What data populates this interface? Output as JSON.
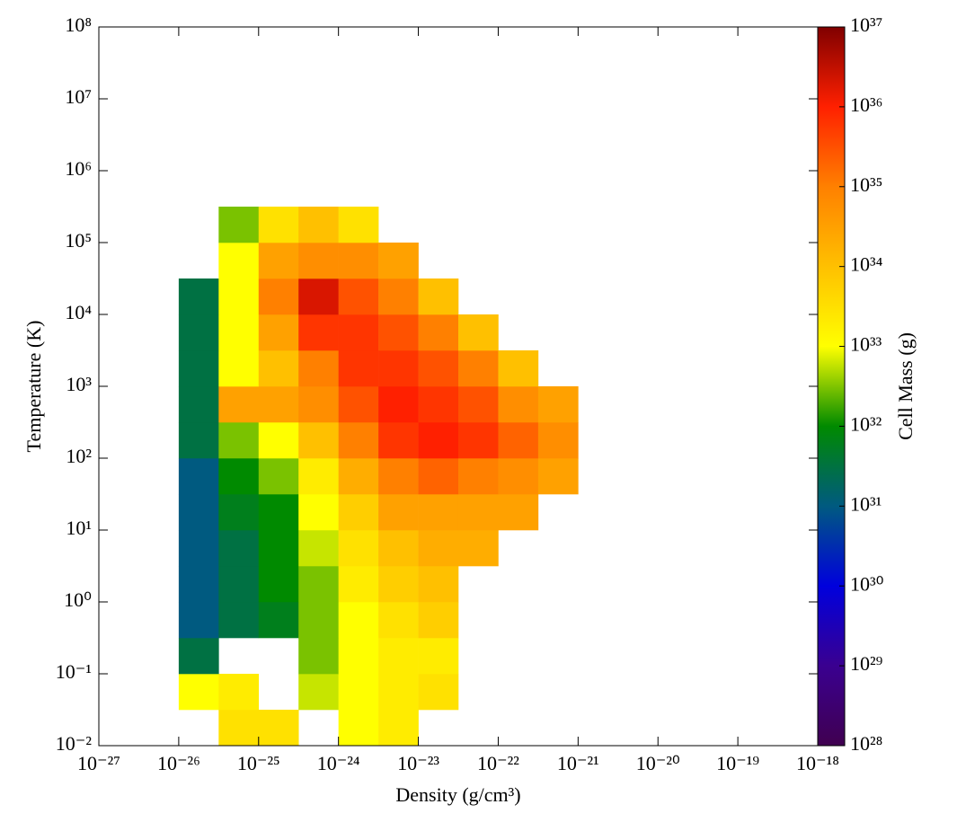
{
  "chart_data": {
    "type": "histogram2d",
    "x_label": "Density  (g/cm³)",
    "y_label": "Temperature  (K)",
    "colorbar_label": "Cell Mass  (g)",
    "xscale": "log",
    "yscale": "log",
    "colorscale": "log",
    "xlim": [
      1e-27,
      1e-18
    ],
    "ylim": [
      0.01,
      100000000
    ],
    "clim": [
      1e+28,
      1e+37
    ],
    "xticks": [
      {
        "value": 1e-27,
        "label": "10⁻²⁷"
      },
      {
        "value": 1e-26,
        "label": "10⁻²⁶"
      },
      {
        "value": 1e-25,
        "label": "10⁻²⁵"
      },
      {
        "value": 1e-24,
        "label": "10⁻²⁴"
      },
      {
        "value": 1e-23,
        "label": "10⁻²³"
      },
      {
        "value": 1e-22,
        "label": "10⁻²²"
      },
      {
        "value": 1e-21,
        "label": "10⁻²¹"
      },
      {
        "value": 1e-20,
        "label": "10⁻²⁰"
      },
      {
        "value": 1e-19,
        "label": "10⁻¹⁹"
      },
      {
        "value": 1e-18,
        "label": "10⁻¹⁸"
      }
    ],
    "yticks": [
      {
        "value": 0.01,
        "label": "10⁻²"
      },
      {
        "value": 0.1,
        "label": "10⁻¹"
      },
      {
        "value": 1,
        "label": "10⁰"
      },
      {
        "value": 10,
        "label": "10¹"
      },
      {
        "value": 100,
        "label": "10²"
      },
      {
        "value": 1000,
        "label": "10³"
      },
      {
        "value": 10000,
        "label": "10⁴"
      },
      {
        "value": 100000,
        "label": "10⁵"
      },
      {
        "value": 1000000,
        "label": "10⁶"
      },
      {
        "value": 10000000,
        "label": "10⁷"
      },
      {
        "value": 100000000,
        "label": "10⁸"
      }
    ],
    "cticks": [
      {
        "value": 1e+28,
        "label": "10²⁸"
      },
      {
        "value": 1e+29,
        "label": "10²⁹"
      },
      {
        "value": 1e+30,
        "label": "10³⁰"
      },
      {
        "value": 1e+31,
        "label": "10³¹"
      },
      {
        "value": 1e+32,
        "label": "10³²"
      },
      {
        "value": 1e+33,
        "label": "10³³"
      },
      {
        "value": 1e+34,
        "label": "10³⁴"
      },
      {
        "value": 1e+35,
        "label": "10³⁵"
      },
      {
        "value": 1e+36,
        "label": "10³⁶"
      },
      {
        "value": 1e+37,
        "label": "10³⁷"
      }
    ],
    "colormap": [
      "#400050",
      "#3a0090",
      "#0000dd",
      "#005a80",
      "#008a00",
      "#ffff00",
      "#ffc000",
      "#ff8000",
      "#ff2000",
      "#800000"
    ],
    "x_edges": [
      1e-26,
      3.162e-26,
      1e-25,
      3.162e-25,
      1e-24,
      3.162e-24,
      1e-23,
      3.162e-23,
      1e-22,
      3.162e-22,
      1e-21
    ],
    "y_edges": [
      0.01,
      0.03162,
      0.1,
      0.3162,
      1,
      3.162,
      10,
      31.62,
      100,
      316.2,
      1000,
      3162,
      10000,
      31620,
      100000,
      316200
    ],
    "values": [
      [
        null,
        3e+33,
        3e+33,
        null,
        1e+33,
        2e+33,
        null,
        null,
        null,
        null
      ],
      [
        1e+33,
        2e+33,
        null,
        6e+32,
        1e+33,
        2e+33,
        3e+33,
        null,
        null,
        null
      ],
      [
        3e+31,
        null,
        null,
        3e+32,
        1e+33,
        2e+33,
        2e+33,
        null,
        null,
        null
      ],
      [
        1e+31,
        3e+31,
        6e+31,
        3e+32,
        1e+33,
        3e+33,
        6e+33,
        null,
        null,
        null
      ],
      [
        1e+31,
        3e+31,
        1e+32,
        3e+32,
        2e+33,
        6e+33,
        1e+34,
        null,
        null,
        null
      ],
      [
        1e+31,
        3e+31,
        1e+32,
        6e+32,
        3e+33,
        1e+34,
        2e+34,
        2e+34,
        null,
        null
      ],
      [
        1e+31,
        6e+31,
        1e+32,
        1e+33,
        6e+33,
        3e+34,
        3e+34,
        3e+34,
        3e+34,
        null
      ],
      [
        1e+31,
        1e+32,
        3e+32,
        2e+33,
        2e+34,
        1e+35,
        2e+35,
        1e+35,
        6e+34,
        3e+34
      ],
      [
        3e+31,
        3e+32,
        1e+33,
        1e+34,
        1e+35,
        6e+35,
        1e+36,
        6e+35,
        2e+35,
        6e+34
      ],
      [
        3e+31,
        3e+34,
        3e+34,
        6e+34,
        3e+35,
        1e+36,
        6e+35,
        3e+35,
        6e+34,
        3e+34
      ],
      [
        3e+31,
        1e+33,
        1e+34,
        1e+35,
        6e+35,
        6e+35,
        3e+35,
        1e+35,
        1e+34,
        null
      ],
      [
        3e+31,
        1e+33,
        3e+34,
        6e+35,
        6e+35,
        3e+35,
        1e+35,
        1e+34,
        null,
        null
      ],
      [
        3e+31,
        1e+33,
        1e+35,
        2e+36,
        3e+35,
        1e+35,
        1e+34,
        null,
        null,
        null
      ],
      [
        null,
        1e+33,
        3e+34,
        6e+34,
        6e+34,
        3e+34,
        null,
        null,
        null,
        null
      ],
      [
        null,
        3e+32,
        3e+33,
        1e+34,
        3e+33,
        null,
        null,
        null,
        null,
        null
      ]
    ]
  }
}
